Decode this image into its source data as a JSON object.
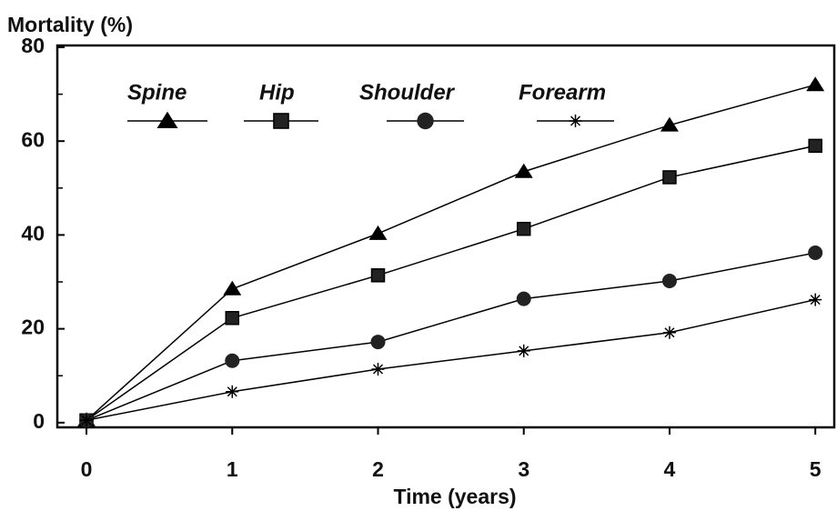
{
  "chart_data": {
    "type": "line",
    "y_axis_label": "Mortality (%)",
    "x_axis_label": "Time (years)",
    "x": [
      0,
      1,
      2,
      3,
      4,
      5
    ],
    "series": [
      {
        "name": "Spine",
        "color": "#000000",
        "marker": "triangle",
        "values": [
          0.5,
          28.5,
          40.3,
          53.5,
          63.4,
          72
        ]
      },
      {
        "name": "Hip",
        "color": "#000000",
        "marker": "square",
        "values": [
          0.5,
          22.3,
          31.4,
          41.3,
          52.3,
          59
        ]
      },
      {
        "name": "Shoulder",
        "color": "#000000",
        "marker": "circle",
        "values": [
          0.5,
          13.2,
          17.2,
          26.4,
          30.2,
          36.2
        ]
      },
      {
        "name": "Forearm",
        "color": "#000000",
        "marker": "asterisk",
        "values": [
          0.5,
          6.6,
          11.4,
          15.3,
          19.2,
          26.2
        ]
      }
    ],
    "xlim": [
      -0.2,
      5.13
    ],
    "xticks": [
      0,
      1,
      2,
      3,
      4,
      5
    ],
    "ylim": [
      -1,
      80
    ],
    "yticks": [
      0,
      20,
      40,
      60,
      80
    ],
    "minor_yticks": [
      10,
      30,
      50,
      70
    ],
    "grid": false,
    "legend": "top"
  }
}
